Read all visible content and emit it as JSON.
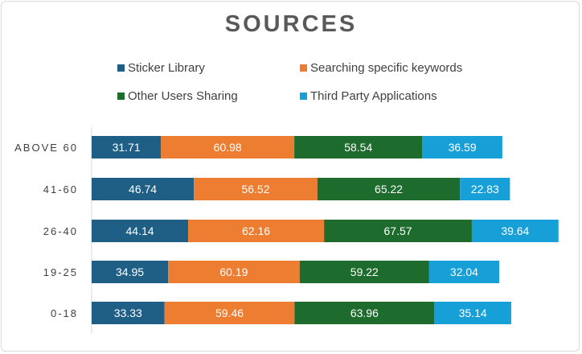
{
  "chart_data": {
    "type": "bar",
    "orientation": "horizontal",
    "stacked": true,
    "title": "SOURCES",
    "categories": [
      "ABOVE 60",
      "41-60",
      "26-40",
      "19-25",
      "0-18"
    ],
    "series": [
      {
        "name": "Sticker Library",
        "color": "#1f5f85",
        "values": [
          31.71,
          46.74,
          44.14,
          34.95,
          33.33
        ]
      },
      {
        "name": "Searching specific keywords",
        "color": "#ed7d31",
        "values": [
          60.98,
          56.52,
          62.16,
          60.19,
          59.46
        ]
      },
      {
        "name": "Other Users Sharing",
        "color": "#1e6b2e",
        "values": [
          58.54,
          65.22,
          67.57,
          59.22,
          63.96
        ]
      },
      {
        "name": "Third Party Applications",
        "color": "#17a0d8",
        "values": [
          36.59,
          22.83,
          39.64,
          32.04,
          35.14
        ]
      }
    ],
    "legend_position": "top",
    "gridlines": false,
    "data_labels": true
  }
}
